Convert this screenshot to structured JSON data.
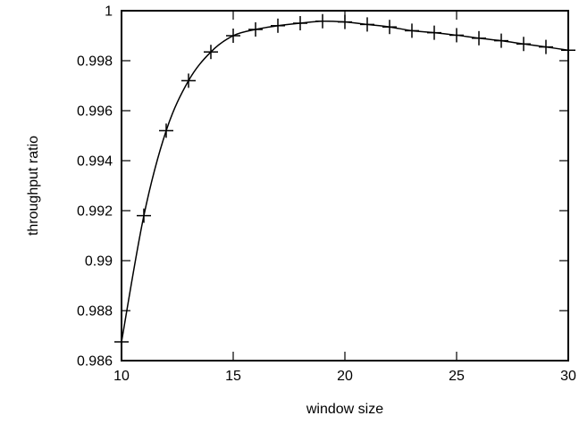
{
  "chart_data": {
    "type": "line",
    "title": "",
    "xlabel": "window size",
    "ylabel": "throughput ratio",
    "xlim": [
      10,
      30
    ],
    "ylim": [
      0.986,
      1.0
    ],
    "xticks": [
      10,
      15,
      20,
      25,
      30
    ],
    "xtick_labels": [
      "10",
      "15",
      "20",
      "25",
      "30"
    ],
    "yticks": [
      0.986,
      0.988,
      0.99,
      0.992,
      0.994,
      0.996,
      0.998,
      1.0
    ],
    "ytick_labels": [
      "0.986",
      "0.988",
      "0.99",
      "0.992",
      "0.994",
      "0.996",
      "0.998",
      "1"
    ],
    "grid": false,
    "legend": "none",
    "series": [
      {
        "marker": "plus",
        "color": "#000000",
        "x": [
          10,
          11,
          12,
          13,
          14,
          15,
          16,
          17,
          18,
          19,
          20,
          21,
          22,
          23,
          24,
          25,
          26,
          27,
          28,
          29,
          30
        ],
        "values": [
          0.98675,
          0.9918,
          0.9952,
          0.9972,
          0.99835,
          0.999,
          0.99925,
          0.9994,
          0.9995,
          0.99958,
          0.99955,
          0.99945,
          0.99935,
          0.9992,
          0.99912,
          0.99902,
          0.9989,
          0.9988,
          0.99867,
          0.99855,
          0.99842
        ]
      }
    ]
  }
}
